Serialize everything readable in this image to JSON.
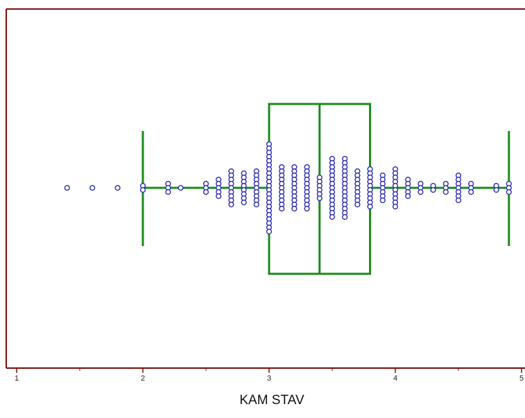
{
  "chart_data": {
    "type": "scatter",
    "subtype": "box-plot-with-beeswarm-dots",
    "title": "",
    "xlabel": "KAM STAV",
    "ylabel": "",
    "xlim": [
      1,
      5
    ],
    "x_ticks": [
      1,
      2,
      3,
      4,
      5
    ],
    "x_tick_labels": [
      "1",
      "2",
      "3",
      "4",
      "5"
    ],
    "grid": false,
    "legend": "none",
    "box": {
      "q1": 3.0,
      "median": 3.4,
      "q3": 3.8,
      "whisker_low": 2.0,
      "whisker_high": 4.9
    },
    "point_groups": [
      {
        "x": 1.4,
        "count": 1
      },
      {
        "x": 1.6,
        "count": 1
      },
      {
        "x": 1.8,
        "count": 1
      },
      {
        "x": 2.0,
        "count": 2
      },
      {
        "x": 2.2,
        "count": 3
      },
      {
        "x": 2.3,
        "count": 1
      },
      {
        "x": 2.5,
        "count": 3
      },
      {
        "x": 2.6,
        "count": 5
      },
      {
        "x": 2.7,
        "count": 9
      },
      {
        "x": 2.8,
        "count": 8
      },
      {
        "x": 2.9,
        "count": 9
      },
      {
        "x": 3.0,
        "count": 22
      },
      {
        "x": 3.1,
        "count": 11
      },
      {
        "x": 3.2,
        "count": 11
      },
      {
        "x": 3.3,
        "count": 11
      },
      {
        "x": 3.4,
        "count": 6
      },
      {
        "x": 3.5,
        "count": 15
      },
      {
        "x": 3.6,
        "count": 15
      },
      {
        "x": 3.7,
        "count": 9
      },
      {
        "x": 3.8,
        "count": 10
      },
      {
        "x": 3.9,
        "count": 7
      },
      {
        "x": 4.0,
        "count": 10
      },
      {
        "x": 4.1,
        "count": 5
      },
      {
        "x": 4.2,
        "count": 3
      },
      {
        "x": 4.3,
        "count": 2
      },
      {
        "x": 4.4,
        "count": 3
      },
      {
        "x": 4.5,
        "count": 7
      },
      {
        "x": 4.6,
        "count": 3
      },
      {
        "x": 4.8,
        "count": 2
      },
      {
        "x": 4.9,
        "count": 3
      }
    ],
    "colors": {
      "frame": "#7a0d0d",
      "box": "#1a8a1a",
      "points": "#2b2bb0"
    }
  }
}
